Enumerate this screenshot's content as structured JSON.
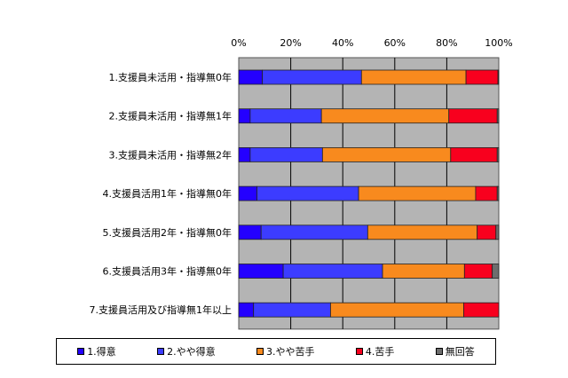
{
  "chart_data": {
    "type": "bar",
    "orientation": "horizontal",
    "stacked": true,
    "title": "",
    "xlabel": "",
    "ylabel": "",
    "xlim": [
      0,
      100
    ],
    "xticks": [
      "0%",
      "20%",
      "40%",
      "60%",
      "80%",
      "100%"
    ],
    "grid": true,
    "legend_position": "bottom",
    "categories": [
      "1.支援員未活用・指導無0年",
      "2.支援員未活用・指導無1年",
      "3.支援員未活用・指導無2年",
      "4.支援員活用1年・指導無0年",
      "5.支援員活用2年・指導無0年",
      "6.支援員活用3年・指導無0年",
      "7.支援員活用及び指導無1年以上"
    ],
    "series": [
      {
        "name": "1.得意",
        "color": "#2400ff",
        "values": [
          9.1,
          4.4,
          4.4,
          7.0,
          8.6,
          17.1,
          5.7
        ]
      },
      {
        "name": "2.やや得意",
        "color": "#3c3cff",
        "values": [
          38.1,
          27.4,
          27.8,
          39.1,
          41.0,
          38.2,
          29.6
        ]
      },
      {
        "name": "3.やや苦手",
        "color": "#f88a1e",
        "values": [
          40.2,
          49.0,
          49.3,
          45.0,
          42.1,
          31.5,
          51.2
        ]
      },
      {
        "name": "4.苦手",
        "color": "#f8001e",
        "values": [
          12.3,
          18.6,
          17.9,
          8.3,
          7.2,
          10.7,
          13.5
        ]
      },
      {
        "name": "無回答",
        "color": "#6e6e6e",
        "values": [
          0.3,
          0.6,
          0.6,
          0.6,
          1.1,
          2.5,
          0.0
        ]
      }
    ]
  }
}
